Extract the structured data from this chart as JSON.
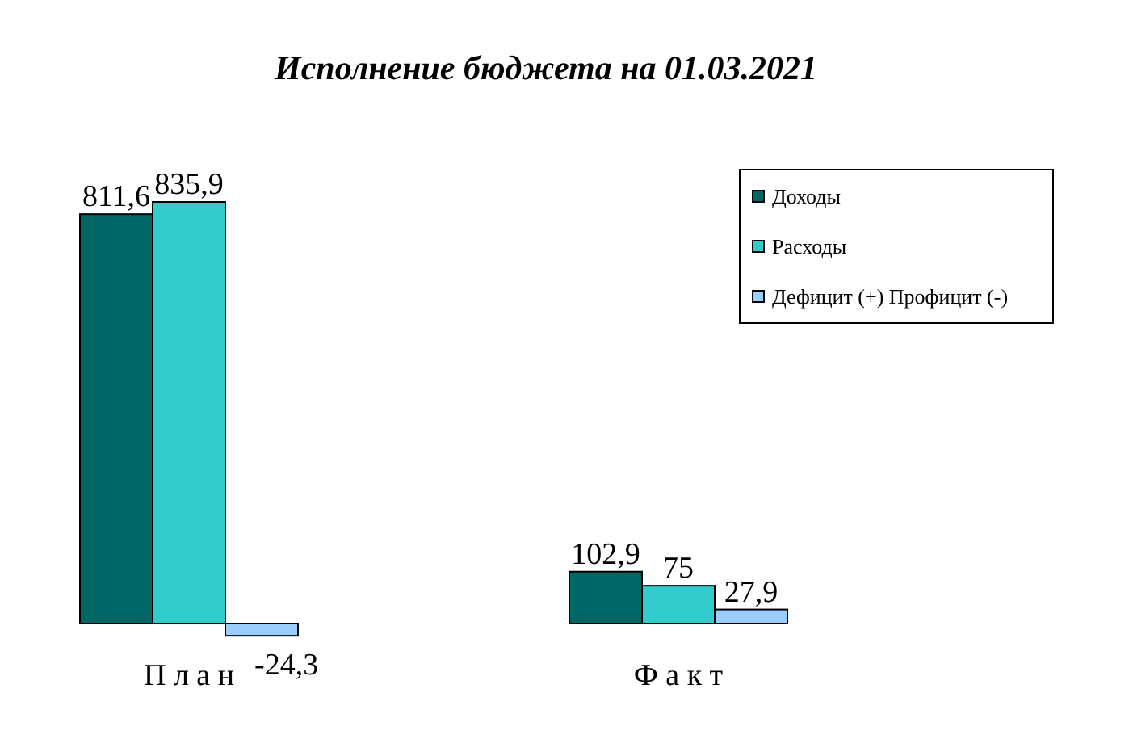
{
  "chart_data": {
    "type": "bar",
    "title": "Исполнение бюджета на 01.03.2021",
    "categories": [
      "П л а н",
      "Ф а к т"
    ],
    "series": [
      {
        "name": "Доходы",
        "color": "#006666",
        "values": [
          811.6,
          102.9
        ],
        "value_labels": [
          "811,6",
          "102,9"
        ]
      },
      {
        "name": "Расходы",
        "color": "#33cccc",
        "values": [
          835.9,
          75
        ],
        "value_labels": [
          "835,9",
          "75"
        ]
      },
      {
        "name": "Дефицит (+) Профицит (-)",
        "color": "#99ccff",
        "values": [
          -24.3,
          27.9
        ],
        "value_labels": [
          "-24,3",
          "27,9"
        ]
      }
    ],
    "legend": "top right"
  }
}
